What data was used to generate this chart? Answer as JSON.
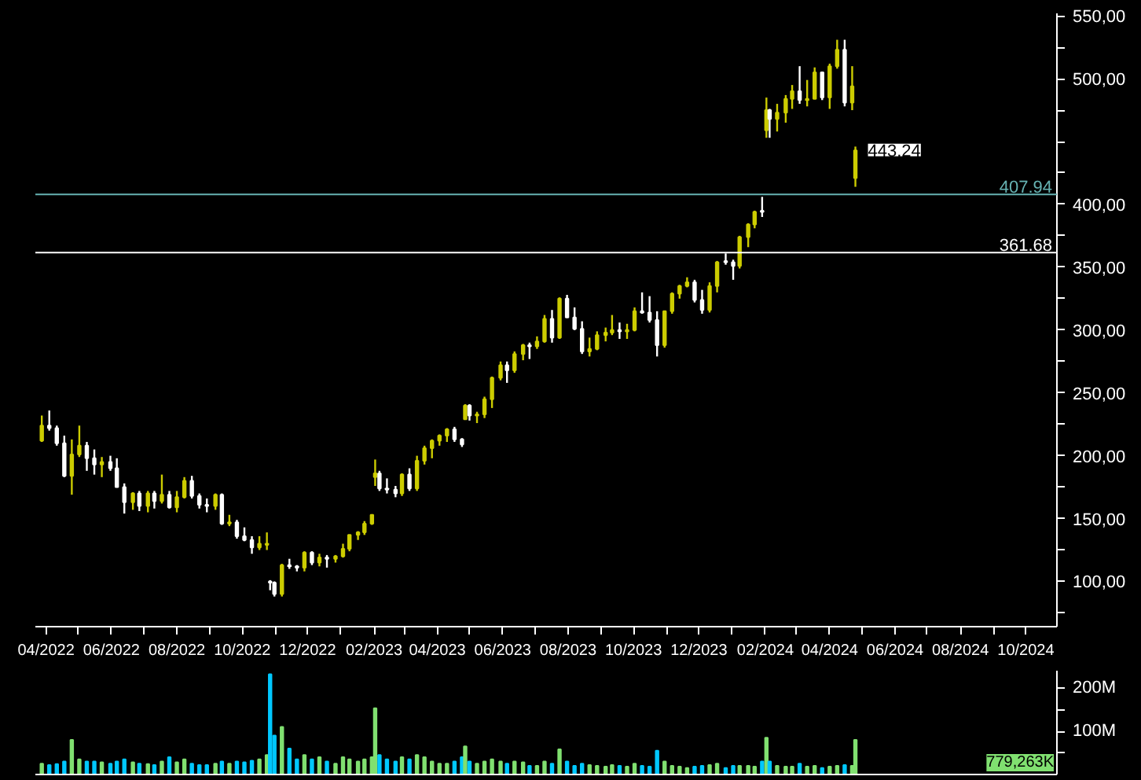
{
  "chart_data": [
    {
      "type": "candlestick",
      "x": [
        "2022-03-28",
        "2022-04-04",
        "2022-04-11",
        "2022-04-18",
        "2022-04-25",
        "2022-05-02",
        "2022-05-09",
        "2022-05-16",
        "2022-05-23",
        "2022-05-31",
        "2022-06-06",
        "2022-06-13",
        "2022-06-21",
        "2022-06-27",
        "2022-07-05",
        "2022-07-11",
        "2022-07-18",
        "2022-07-25",
        "2022-08-01",
        "2022-08-08",
        "2022-08-15",
        "2022-08-22",
        "2022-08-29",
        "2022-09-06",
        "2022-09-12",
        "2022-09-19",
        "2022-09-26",
        "2022-10-03",
        "2022-10-10",
        "2022-10-17",
        "2022-10-24",
        "2022-10-27",
        "2022-10-31",
        "2022-11-07",
        "2022-11-14",
        "2022-11-21",
        "2022-11-28",
        "2022-12-05",
        "2022-12-12",
        "2022-12-19",
        "2022-12-27",
        "2023-01-03",
        "2023-01-09",
        "2023-01-17",
        "2023-01-23",
        "2023-01-30",
        "2023-02-02",
        "2023-02-06",
        "2023-02-13",
        "2023-02-21",
        "2023-02-27",
        "2023-03-06",
        "2023-03-13",
        "2023-03-20",
        "2023-03-27",
        "2023-04-03",
        "2023-04-10",
        "2023-04-17",
        "2023-04-24",
        "2023-04-27",
        "2023-05-01",
        "2023-05-08",
        "2023-05-15",
        "2023-05-22",
        "2023-05-30",
        "2023-06-05",
        "2023-06-12",
        "2023-06-20",
        "2023-06-26",
        "2023-07-03",
        "2023-07-10",
        "2023-07-17",
        "2023-07-24",
        "2023-07-31",
        "2023-08-07",
        "2023-08-14",
        "2023-08-21",
        "2023-08-28",
        "2023-09-05",
        "2023-09-11",
        "2023-09-18",
        "2023-09-25",
        "2023-10-02",
        "2023-10-09",
        "2023-10-16",
        "2023-10-23",
        "2023-10-30",
        "2023-11-06",
        "2023-11-13",
        "2023-11-20",
        "2023-11-27",
        "2023-12-04",
        "2023-12-11",
        "2023-12-18",
        "2023-12-26",
        "2024-01-02",
        "2024-01-08",
        "2024-01-16",
        "2024-01-22",
        "2024-01-29",
        "2024-02-02",
        "2024-02-05",
        "2024-02-12",
        "2024-02-20",
        "2024-02-26",
        "2024-03-04",
        "2024-03-11",
        "2024-03-18",
        "2024-03-25",
        "2024-04-01",
        "2024-04-08",
        "2024-04-15",
        "2024-04-22",
        "2024-04-25"
      ],
      "ohlc": [
        [
          212,
          232,
          211,
          224
        ],
        [
          224,
          236,
          220,
          222
        ],
        [
          222,
          224,
          208,
          210
        ],
        [
          210,
          216,
          183,
          184
        ],
        [
          184,
          213,
          169,
          201
        ],
        [
          201,
          224,
          199,
          208
        ],
        [
          208,
          211,
          188,
          198
        ],
        [
          198,
          205,
          185,
          193
        ],
        [
          193,
          199,
          183,
          195
        ],
        [
          195,
          200,
          188,
          190
        ],
        [
          190,
          198,
          175,
          175
        ],
        [
          175,
          178,
          154,
          163
        ],
        [
          163,
          171,
          157,
          170
        ],
        [
          170,
          172,
          156,
          160
        ],
        [
          160,
          172,
          155,
          170
        ],
        [
          170,
          172,
          158,
          164
        ],
        [
          164,
          185,
          162,
          169
        ],
        [
          169,
          172,
          158,
          159
        ],
        [
          159,
          172,
          155,
          167
        ],
        [
          167,
          183,
          166,
          180
        ],
        [
          180,
          184,
          166,
          168
        ],
        [
          168,
          170,
          158,
          161
        ],
        [
          161,
          166,
          155,
          160
        ],
        [
          160,
          170,
          157,
          169
        ],
        [
          169,
          170,
          145,
          146
        ],
        [
          146,
          153,
          144,
          147
        ],
        [
          147,
          149,
          134,
          136
        ],
        [
          136,
          143,
          132,
          133
        ],
        [
          133,
          136,
          122,
          127
        ],
        [
          127,
          136,
          125,
          130
        ],
        [
          129,
          139,
          125,
          130
        ],
        [
          100,
          101,
          93,
          99
        ],
        [
          99,
          100,
          88,
          90
        ],
        [
          90,
          114,
          88,
          113
        ],
        [
          113,
          118,
          110,
          112
        ],
        [
          112,
          113,
          108,
          111
        ],
        [
          111,
          124,
          108,
          123
        ],
        [
          123,
          124,
          113,
          115
        ],
        [
          115,
          122,
          112,
          119
        ],
        [
          119,
          121,
          111,
          118
        ],
        [
          118,
          121,
          115,
          120
        ],
        [
          120,
          130,
          119,
          126
        ],
        [
          126,
          137,
          124,
          137
        ],
        [
          137,
          140,
          133,
          139
        ],
        [
          139,
          148,
          137,
          146
        ],
        [
          146,
          153,
          145,
          153
        ],
        [
          183,
          197,
          176,
          186
        ],
        [
          186,
          188,
          172,
          174
        ],
        [
          174,
          182,
          170,
          173
        ],
        [
          173,
          176,
          167,
          170
        ],
        [
          170,
          186,
          168,
          185
        ],
        [
          185,
          190,
          172,
          174
        ],
        [
          174,
          200,
          172,
          196
        ],
        [
          196,
          208,
          193,
          206
        ],
        [
          206,
          213,
          198,
          212
        ],
        [
          212,
          217,
          208,
          216
        ],
        [
          216,
          222,
          211,
          221
        ],
        [
          221,
          223,
          211,
          213
        ],
        [
          213,
          214,
          207,
          209
        ],
        [
          229,
          241,
          229,
          240
        ],
        [
          240,
          241,
          228,
          232
        ],
        [
          232,
          235,
          226,
          233
        ],
        [
          233,
          247,
          230,
          245
        ],
        [
          245,
          263,
          238,
          262
        ],
        [
          262,
          275,
          260,
          272
        ],
        [
          272,
          275,
          258,
          268
        ],
        [
          268,
          283,
          266,
          281
        ],
        [
          281,
          289,
          276,
          288
        ],
        [
          288,
          290,
          277,
          287
        ],
        [
          287,
          295,
          285,
          291
        ],
        [
          291,
          312,
          290,
          309
        ],
        [
          309,
          316,
          290,
          294
        ],
        [
          294,
          326,
          293,
          325
        ],
        [
          325,
          328,
          310,
          310
        ],
        [
          310,
          318,
          300,
          301
        ],
        [
          301,
          307,
          281,
          283
        ],
        [
          283,
          294,
          279,
          285
        ],
        [
          285,
          299,
          284,
          296
        ],
        [
          296,
          302,
          291,
          298
        ],
        [
          298,
          312,
          296,
          300
        ],
        [
          300,
          306,
          293,
          299
        ],
        [
          299,
          305,
          293,
          300
        ],
        [
          300,
          318,
          299,
          315
        ],
        [
          315,
          330,
          313,
          314
        ],
        [
          314,
          327,
          306,
          308
        ],
        [
          308,
          315,
          279,
          288
        ],
        [
          288,
          315,
          286,
          315
        ],
        [
          315,
          330,
          313,
          329
        ],
        [
          329,
          336,
          325,
          335
        ],
        [
          335,
          342,
          334,
          338
        ],
        [
          338,
          340,
          322,
          324
        ],
        [
          324,
          332,
          313,
          316
        ],
        [
          316,
          338,
          314,
          335
        ],
        [
          335,
          355,
          330,
          354
        ],
        [
          355,
          361,
          352,
          354
        ],
        [
          354,
          356,
          340,
          351
        ],
        [
          351,
          375,
          349,
          374
        ],
        [
          374,
          385,
          366,
          384
        ],
        [
          384,
          395,
          381,
          394
        ],
        [
          395,
          406,
          390,
          394
        ],
        [
          459,
          485,
          453,
          475
        ],
        [
          475,
          476,
          453,
          468
        ],
        [
          468,
          480,
          458,
          473
        ],
        [
          473,
          487,
          465,
          484
        ],
        [
          484,
          495,
          476,
          490
        ],
        [
          490,
          510,
          480,
          483
        ],
        [
          483,
          499,
          478,
          484
        ],
        [
          484,
          509,
          484,
          505
        ],
        [
          505,
          505,
          483,
          485
        ],
        [
          485,
          512,
          476,
          510
        ],
        [
          510,
          531,
          508,
          523
        ],
        [
          523,
          531,
          478,
          481
        ],
        [
          481,
          510,
          475,
          494
        ],
        [
          421,
          446,
          414,
          443
        ]
      ],
      "colors": [
        "#cccc00",
        "#ffffff",
        "#ffffff",
        "#ffffff",
        "#cccc00",
        "#cccc00",
        "#ffffff",
        "#ffffff",
        "#cccc00",
        "#ffffff",
        "#ffffff",
        "#ffffff",
        "#cccc00",
        "#ffffff",
        "#cccc00",
        "#ffffff",
        "#cccc00",
        "#ffffff",
        "#cccc00",
        "#cccc00",
        "#ffffff",
        "#ffffff",
        "#ffffff",
        "#cccc00",
        "#ffffff",
        "#cccc00",
        "#ffffff",
        "#ffffff",
        "#ffffff",
        "#cccc00",
        "#cccc00",
        "#ffffff",
        "#ffffff",
        "#cccc00",
        "#ffffff",
        "#ffffff",
        "#cccc00",
        "#ffffff",
        "#cccc00",
        "#ffffff",
        "#cccc00",
        "#cccc00",
        "#cccc00",
        "#cccc00",
        "#cccc00",
        "#cccc00",
        "#cccc00",
        "#ffffff",
        "#ffffff",
        "#ffffff",
        "#cccc00",
        "#ffffff",
        "#cccc00",
        "#cccc00",
        "#cccc00",
        "#cccc00",
        "#cccc00",
        "#ffffff",
        "#ffffff",
        "#cccc00",
        "#ffffff",
        "#cccc00",
        "#cccc00",
        "#cccc00",
        "#cccc00",
        "#ffffff",
        "#cccc00",
        "#cccc00",
        "#ffffff",
        "#cccc00",
        "#cccc00",
        "#ffffff",
        "#cccc00",
        "#ffffff",
        "#ffffff",
        "#ffffff",
        "#cccc00",
        "#cccc00",
        "#cccc00",
        "#cccc00",
        "#ffffff",
        "#cccc00",
        "#cccc00",
        "#ffffff",
        "#ffffff",
        "#ffffff",
        "#cccc00",
        "#cccc00",
        "#cccc00",
        "#cccc00",
        "#ffffff",
        "#ffffff",
        "#cccc00",
        "#cccc00",
        "#ffffff",
        "#ffffff",
        "#cccc00",
        "#cccc00",
        "#cccc00",
        "#ffffff",
        "#cccc00",
        "#ffffff",
        "#cccc00",
        "#cccc00",
        "#cccc00",
        "#ffffff",
        "#cccc00",
        "#cccc00",
        "#ffffff",
        "#cccc00",
        "#cccc00",
        "#ffffff",
        "#cccc00",
        "#cccc00"
      ],
      "xlim": [
        "2022-03-22",
        "2024-10-30"
      ],
      "xticks": [
        {
          "value": "2022-04-01",
          "label": "04/2022"
        },
        {
          "value": "2022-05-01",
          "label": null
        },
        {
          "value": "2022-06-01",
          "label": "06/2022"
        },
        {
          "value": "2022-07-01",
          "label": null
        },
        {
          "value": "2022-08-01",
          "label": "08/2022"
        },
        {
          "value": "2022-09-01",
          "label": null
        },
        {
          "value": "2022-10-01",
          "label": "10/2022"
        },
        {
          "value": "2022-11-01",
          "label": null
        },
        {
          "value": "2022-12-01",
          "label": "12/2022"
        },
        {
          "value": "2023-01-01",
          "label": null
        },
        {
          "value": "2023-02-01",
          "label": "02/2023"
        },
        {
          "value": "2023-03-01",
          "label": null
        },
        {
          "value": "2023-04-01",
          "label": "04/2023"
        },
        {
          "value": "2023-05-01",
          "label": null
        },
        {
          "value": "2023-06-01",
          "label": "06/2023"
        },
        {
          "value": "2023-07-01",
          "label": null
        },
        {
          "value": "2023-08-01",
          "label": "08/2023"
        },
        {
          "value": "2023-09-01",
          "label": null
        },
        {
          "value": "2023-10-01",
          "label": "10/2023"
        },
        {
          "value": "2023-11-01",
          "label": null
        },
        {
          "value": "2023-12-01",
          "label": "12/2023"
        },
        {
          "value": "2024-01-01",
          "label": null
        },
        {
          "value": "2024-02-01",
          "label": "02/2024"
        },
        {
          "value": "2024-03-01",
          "label": null
        },
        {
          "value": "2024-04-01",
          "label": "04/2024"
        },
        {
          "value": "2024-05-01",
          "label": null
        },
        {
          "value": "2024-06-01",
          "label": "06/2024"
        },
        {
          "value": "2024-07-01",
          "label": null
        },
        {
          "value": "2024-08-01",
          "label": "08/2024"
        },
        {
          "value": "2024-09-01",
          "label": null
        },
        {
          "value": "2024-10-01",
          "label": "10/2024"
        }
      ],
      "ylim": [
        64,
        552
      ],
      "yticks": [
        {
          "value": 75,
          "label": null
        },
        {
          "value": 100,
          "label": "100,00"
        },
        {
          "value": 125,
          "label": null
        },
        {
          "value": 150,
          "label": "150,00"
        },
        {
          "value": 175,
          "label": null
        },
        {
          "value": 200,
          "label": "200,00"
        },
        {
          "value": 225,
          "label": null
        },
        {
          "value": 250,
          "label": "250,00"
        },
        {
          "value": 275,
          "label": null
        },
        {
          "value": 300,
          "label": "300,00"
        },
        {
          "value": 325,
          "label": null
        },
        {
          "value": 350,
          "label": "350,00"
        },
        {
          "value": 375,
          "label": null
        },
        {
          "value": 400,
          "label": "400,00"
        },
        {
          "value": 425,
          "label": null
        },
        {
          "value": 450,
          "label": null
        },
        {
          "value": 475,
          "label": null
        },
        {
          "value": 500,
          "label": "500,00"
        },
        {
          "value": 525,
          "label": null
        },
        {
          "value": 550,
          "label": "550,00"
        }
      ],
      "ref_lines": [
        {
          "axis": "y",
          "value": 407.94,
          "label": "407.94",
          "color": "#66b2b2"
        },
        {
          "axis": "y",
          "value": 361.68,
          "label": "361.68",
          "color": "#ffffff"
        }
      ],
      "annotations": [
        {
          "text": "443,24",
          "x": "2024-04-25",
          "y": 443.24
        }
      ],
      "grid": false
    },
    {
      "type": "bar",
      "x": [
        "2022-03-28",
        "2022-04-04",
        "2022-04-11",
        "2022-04-18",
        "2022-04-25",
        "2022-05-02",
        "2022-05-09",
        "2022-05-16",
        "2022-05-23",
        "2022-05-31",
        "2022-06-06",
        "2022-06-13",
        "2022-06-21",
        "2022-06-27",
        "2022-07-05",
        "2022-07-11",
        "2022-07-18",
        "2022-07-25",
        "2022-08-01",
        "2022-08-08",
        "2022-08-15",
        "2022-08-22",
        "2022-08-29",
        "2022-09-06",
        "2022-09-12",
        "2022-09-19",
        "2022-09-26",
        "2022-10-03",
        "2022-10-10",
        "2022-10-17",
        "2022-10-24",
        "2022-10-27",
        "2022-10-31",
        "2022-11-07",
        "2022-11-14",
        "2022-11-21",
        "2022-11-28",
        "2022-12-05",
        "2022-12-12",
        "2022-12-19",
        "2022-12-27",
        "2023-01-03",
        "2023-01-09",
        "2023-01-17",
        "2023-01-23",
        "2023-01-30",
        "2023-02-02",
        "2023-02-06",
        "2023-02-13",
        "2023-02-21",
        "2023-02-27",
        "2023-03-06",
        "2023-03-13",
        "2023-03-20",
        "2023-03-27",
        "2023-04-03",
        "2023-04-10",
        "2023-04-17",
        "2023-04-24",
        "2023-04-27",
        "2023-05-01",
        "2023-05-08",
        "2023-05-15",
        "2023-05-22",
        "2023-05-30",
        "2023-06-05",
        "2023-06-12",
        "2023-06-20",
        "2023-06-26",
        "2023-07-03",
        "2023-07-10",
        "2023-07-17",
        "2023-07-24",
        "2023-07-31",
        "2023-08-07",
        "2023-08-14",
        "2023-08-21",
        "2023-08-28",
        "2023-09-05",
        "2023-09-11",
        "2023-09-18",
        "2023-09-25",
        "2023-10-02",
        "2023-10-09",
        "2023-10-16",
        "2023-10-23",
        "2023-10-30",
        "2023-11-06",
        "2023-11-13",
        "2023-11-20",
        "2023-11-27",
        "2023-12-04",
        "2023-12-11",
        "2023-12-18",
        "2023-12-26",
        "2024-01-02",
        "2024-01-08",
        "2024-01-16",
        "2024-01-22",
        "2024-01-29",
        "2024-02-02",
        "2024-02-05",
        "2024-02-12",
        "2024-02-20",
        "2024-02-26",
        "2024-03-04",
        "2024-03-11",
        "2024-03-18",
        "2024-03-25",
        "2024-04-01",
        "2024-04-08",
        "2024-04-15",
        "2024-04-22",
        "2024-04-25"
      ],
      "values": [
        25,
        22,
        24,
        30,
        80,
        35,
        30,
        30,
        28,
        25,
        30,
        35,
        28,
        25,
        24,
        22,
        30,
        40,
        28,
        35,
        25,
        22,
        22,
        25,
        30,
        25,
        30,
        28,
        32,
        35,
        45,
        232,
        90,
        110,
        60,
        35,
        45,
        35,
        40,
        30,
        25,
        40,
        35,
        30,
        35,
        40,
        153,
        45,
        35,
        30,
        40,
        35,
        45,
        40,
        30,
        25,
        25,
        30,
        40,
        65,
        30,
        25,
        30,
        35,
        30,
        25,
        30,
        28,
        20,
        20,
        30,
        25,
        58,
        30,
        20,
        25,
        22,
        20,
        18,
        22,
        20,
        18,
        25,
        20,
        18,
        55,
        30,
        20,
        18,
        15,
        18,
        20,
        22,
        25,
        15,
        20,
        20,
        20,
        18,
        30,
        85,
        30,
        20,
        18,
        18,
        25,
        18,
        20,
        15,
        18,
        20,
        22,
        20,
        80
      ],
      "colors": [
        "#80e070",
        "#00c8ff",
        "#00c8ff",
        "#00c8ff",
        "#80e070",
        "#80e070",
        "#00c8ff",
        "#00c8ff",
        "#80e070",
        "#00c8ff",
        "#00c8ff",
        "#00c8ff",
        "#80e070",
        "#00c8ff",
        "#80e070",
        "#00c8ff",
        "#80e070",
        "#00c8ff",
        "#80e070",
        "#80e070",
        "#00c8ff",
        "#00c8ff",
        "#00c8ff",
        "#80e070",
        "#00c8ff",
        "#80e070",
        "#00c8ff",
        "#00c8ff",
        "#00c8ff",
        "#80e070",
        "#80e070",
        "#00c8ff",
        "#00c8ff",
        "#80e070",
        "#00c8ff",
        "#00c8ff",
        "#80e070",
        "#00c8ff",
        "#80e070",
        "#00c8ff",
        "#80e070",
        "#80e070",
        "#80e070",
        "#80e070",
        "#80e070",
        "#80e070",
        "#80e070",
        "#00c8ff",
        "#00c8ff",
        "#00c8ff",
        "#80e070",
        "#00c8ff",
        "#80e070",
        "#80e070",
        "#80e070",
        "#80e070",
        "#80e070",
        "#00c8ff",
        "#00c8ff",
        "#80e070",
        "#00c8ff",
        "#80e070",
        "#80e070",
        "#80e070",
        "#80e070",
        "#00c8ff",
        "#80e070",
        "#80e070",
        "#00c8ff",
        "#80e070",
        "#80e070",
        "#00c8ff",
        "#80e070",
        "#00c8ff",
        "#00c8ff",
        "#00c8ff",
        "#80e070",
        "#80e070",
        "#80e070",
        "#80e070",
        "#00c8ff",
        "#80e070",
        "#80e070",
        "#00c8ff",
        "#00c8ff",
        "#00c8ff",
        "#80e070",
        "#80e070",
        "#80e070",
        "#80e070",
        "#00c8ff",
        "#00c8ff",
        "#80e070",
        "#80e070",
        "#00c8ff",
        "#00c8ff",
        "#80e070",
        "#80e070",
        "#80e070",
        "#00c8ff",
        "#80e070",
        "#00c8ff",
        "#80e070",
        "#80e070",
        "#80e070",
        "#00c8ff",
        "#80e070",
        "#80e070",
        "#00c8ff",
        "#80e070",
        "#80e070",
        "#00c8ff",
        "#80e070",
        "#80e070"
      ],
      "xlim": [
        "2022-03-22",
        "2024-10-30"
      ],
      "ylim": [
        0,
        240
      ],
      "yticks": [
        {
          "value": 50,
          "label": null
        },
        {
          "value": 100,
          "label": "100M"
        },
        {
          "value": 150,
          "label": null
        },
        {
          "value": 200,
          "label": "200M"
        }
      ],
      "tick_labels": "y",
      "annotations": [
        "779,263K"
      ],
      "grid": false
    }
  ]
}
